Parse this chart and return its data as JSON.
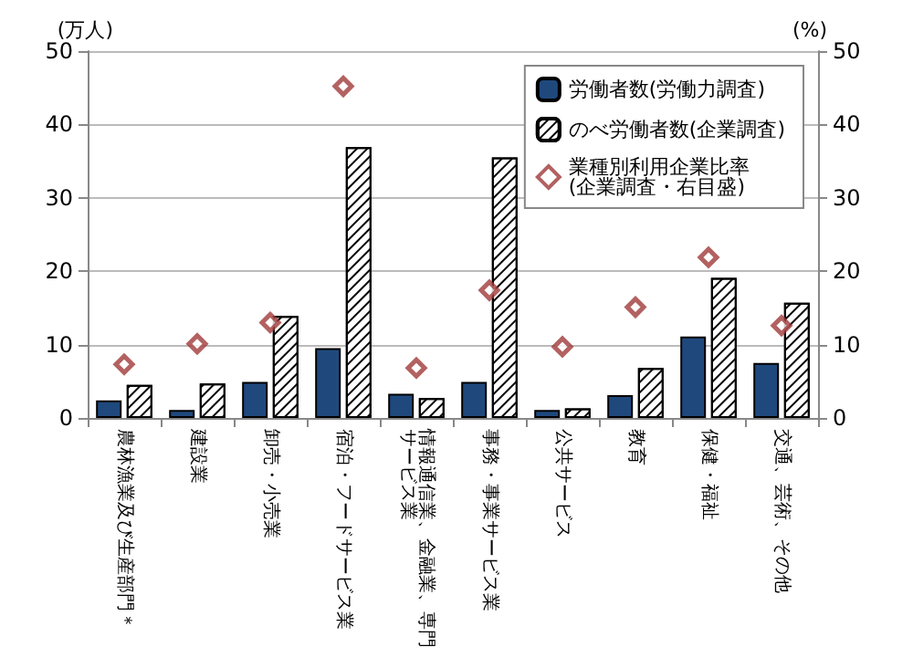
{
  "chart_data": {
    "type": "bar",
    "ylabel": "(万人)",
    "y2label": "(%)",
    "categories": [
      "農林漁業及び生産部門＊",
      "建設業",
      "卸売・小売業",
      "宿泊・フードサービス業",
      "情報通信業、金融業、専門サービス業",
      "事務・事業サービス業",
      "公共サービス",
      "教育",
      "保健・福祉",
      "交通、芸術、その他"
    ],
    "series": [
      {
        "name": "労働者数(労働力調査)",
        "color": "#1f497d",
        "values": [
          2.4,
          1.1,
          4.9,
          9.5,
          3.3,
          4.9,
          1.1,
          3.1,
          11.1,
          7.5
        ]
      },
      {
        "name": "のべ労働者数(企業調査)",
        "color": "#ffffff",
        "values": [
          4.5,
          4.7,
          13.9,
          36.9,
          2.7,
          35.5,
          1.3,
          6.8,
          19.1,
          15.7
        ]
      },
      {
        "name": "業種別利用企業比率\n(企業調査・右目盛)",
        "type": "scatter",
        "axis": "y2",
        "color": "#a0393a",
        "marker": "diamond",
        "values": [
          7.3,
          10.1,
          13.0,
          45.2,
          6.8,
          17.4,
          9.7,
          15.1,
          21.9,
          12.6
        ]
      }
    ],
    "ylim": [
      0,
      50
    ],
    "yticks": [
      0,
      10,
      20,
      30,
      40,
      50
    ],
    "y2lim": [
      0,
      50
    ],
    "y2ticks": [
      0,
      10,
      20,
      30,
      40,
      50
    ],
    "grid": "y",
    "legend": "top right"
  }
}
